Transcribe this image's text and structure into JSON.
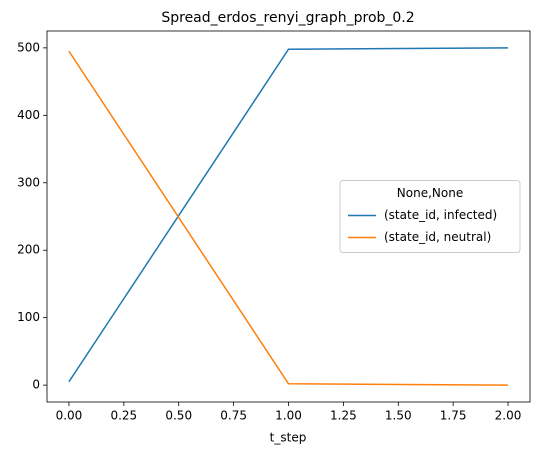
{
  "chart_data": {
    "type": "line",
    "title": "Spread_erdos_renyi_graph_prob_0.2",
    "x_label": "t_step",
    "x": [
      0,
      1,
      2
    ],
    "series": [
      {
        "name": "(state_id, infected)",
        "color": "#1f77b4",
        "values": [
          5,
          498,
          500
        ]
      },
      {
        "name": "(state_id, neutral)",
        "color": "#ff7f0e",
        "values": [
          495,
          2,
          0
        ]
      }
    ],
    "legend_title": "None,None",
    "legend_position": "right",
    "xlim": [
      -0.1,
      2.1
    ],
    "xticks": [
      {
        "value": 0,
        "label": "0.00"
      },
      0.25,
      {
        "value": 0.5,
        "label": "0.50"
      },
      0.75,
      {
        "value": 1,
        "label": "1.00"
      },
      1.25,
      {
        "value": 1.5,
        "label": "1.50"
      },
      1.75,
      {
        "value": 2,
        "label": "2.00"
      }
    ],
    "ylim": [
      -25,
      525
    ],
    "yticks": [
      0,
      100,
      200,
      300,
      400,
      500
    ],
    "grid": false
  }
}
